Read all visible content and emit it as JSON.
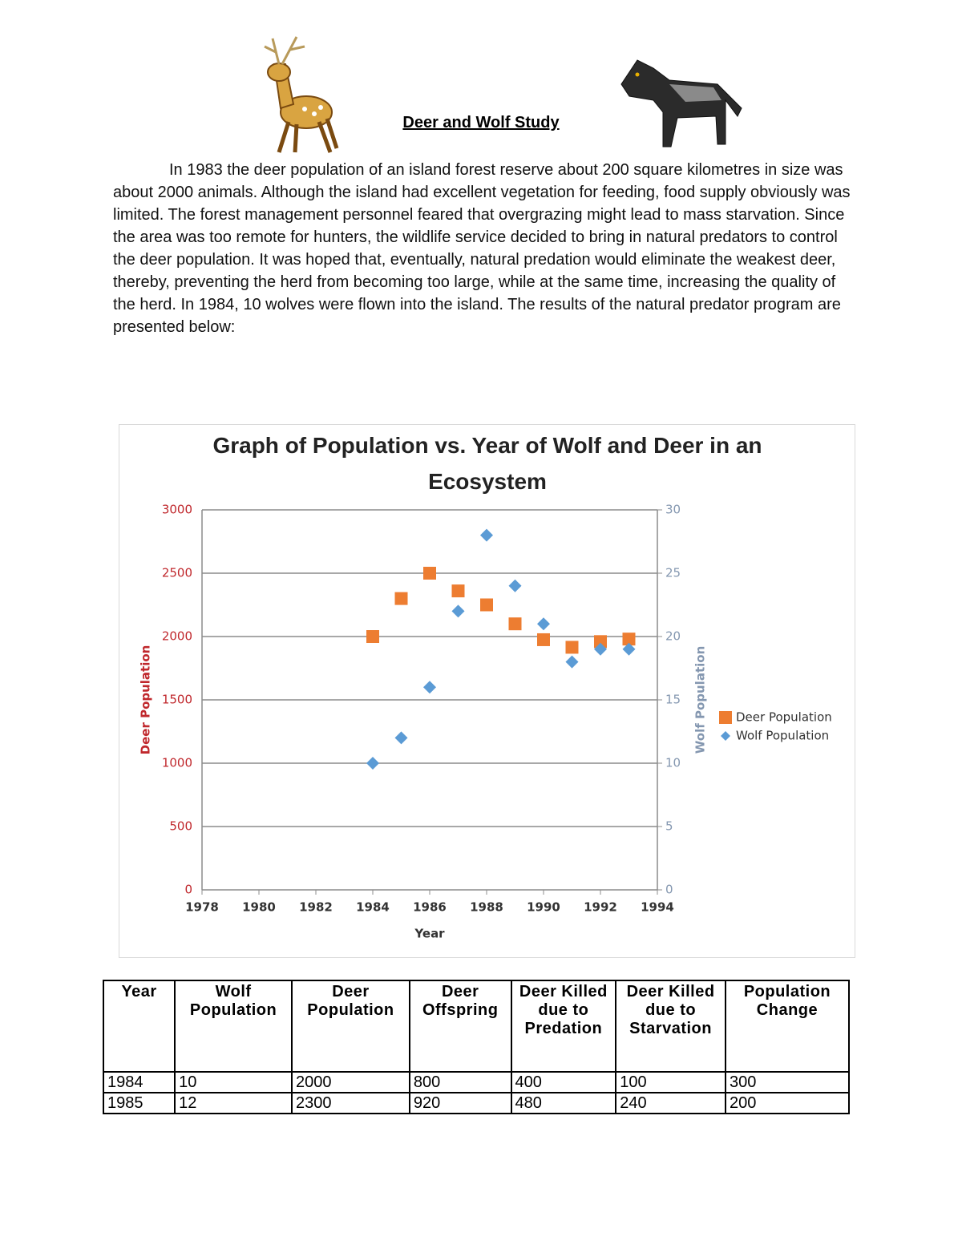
{
  "header": {
    "title": "Deer and Wolf Study"
  },
  "paragraph": "In 1983 the deer population of an island forest reserve about 200 square kilometres in size was about 2000 animals.  Although the island had excellent vegetation for feeding, food supply obviously was limited.  The forest management personnel feared that overgrazing might lead to mass starvation.  Since the area was too remote for hunters, the wildlife service decided to bring in natural predators to control the deer population.  It was hoped that, eventually, natural predation would eliminate the weakest deer, thereby, preventing the herd from becoming too large, while at the same time, increasing the quality of the herd.  In 1984, 10 wolves were flown into the island.  The results of the natural predator program are presented below:",
  "chart_data": {
    "type": "scatter",
    "title": "Graph of Population vs. Year of Wolf and Deer in an Ecosystem",
    "x_label": "Year",
    "y_label": "Deer Population",
    "y2_label": "Wolf Population",
    "x": [
      1984,
      1985,
      1986,
      1987,
      1988,
      1989,
      1990,
      1991,
      1992,
      1993
    ],
    "series": [
      {
        "name": "Deer Population",
        "color": "#ed7d31",
        "marker": "square",
        "values": [
          2000,
          2300,
          2500,
          2360,
          2250,
          2100,
          1975,
          1915,
          1960,
          1980
        ]
      },
      {
        "name": "Wolf Population",
        "color": "#5b9bd5",
        "marker": "diamond",
        "axis": "y2",
        "values": [
          10,
          12,
          16,
          22,
          28,
          24,
          21,
          18,
          19,
          19
        ]
      }
    ],
    "xlim": [
      1978,
      1994
    ],
    "xticks": [
      1978,
      1980,
      1982,
      1984,
      1986,
      1988,
      1990,
      1992,
      1994
    ],
    "ylim": [
      0,
      3000
    ],
    "yticks": [
      0,
      500,
      1000,
      1500,
      2000,
      2500,
      3000
    ],
    "y2lim": [
      0,
      30
    ],
    "y2ticks": [
      0,
      5,
      10,
      15,
      20,
      25,
      30
    ],
    "grid": true,
    "legend": "right"
  },
  "table": {
    "header": [
      "Year",
      "Wolf Population",
      "Deer Population",
      "Deer Offspring",
      "Deer Killed due to Predation",
      "Deer Killed due to Starvation",
      "Population Change"
    ],
    "rows": [
      [
        "1984",
        "10",
        "2000",
        "800",
        "400",
        "100",
        "300"
      ],
      [
        "1985",
        "12",
        "2300",
        "920",
        "480",
        "240",
        "200"
      ]
    ]
  }
}
